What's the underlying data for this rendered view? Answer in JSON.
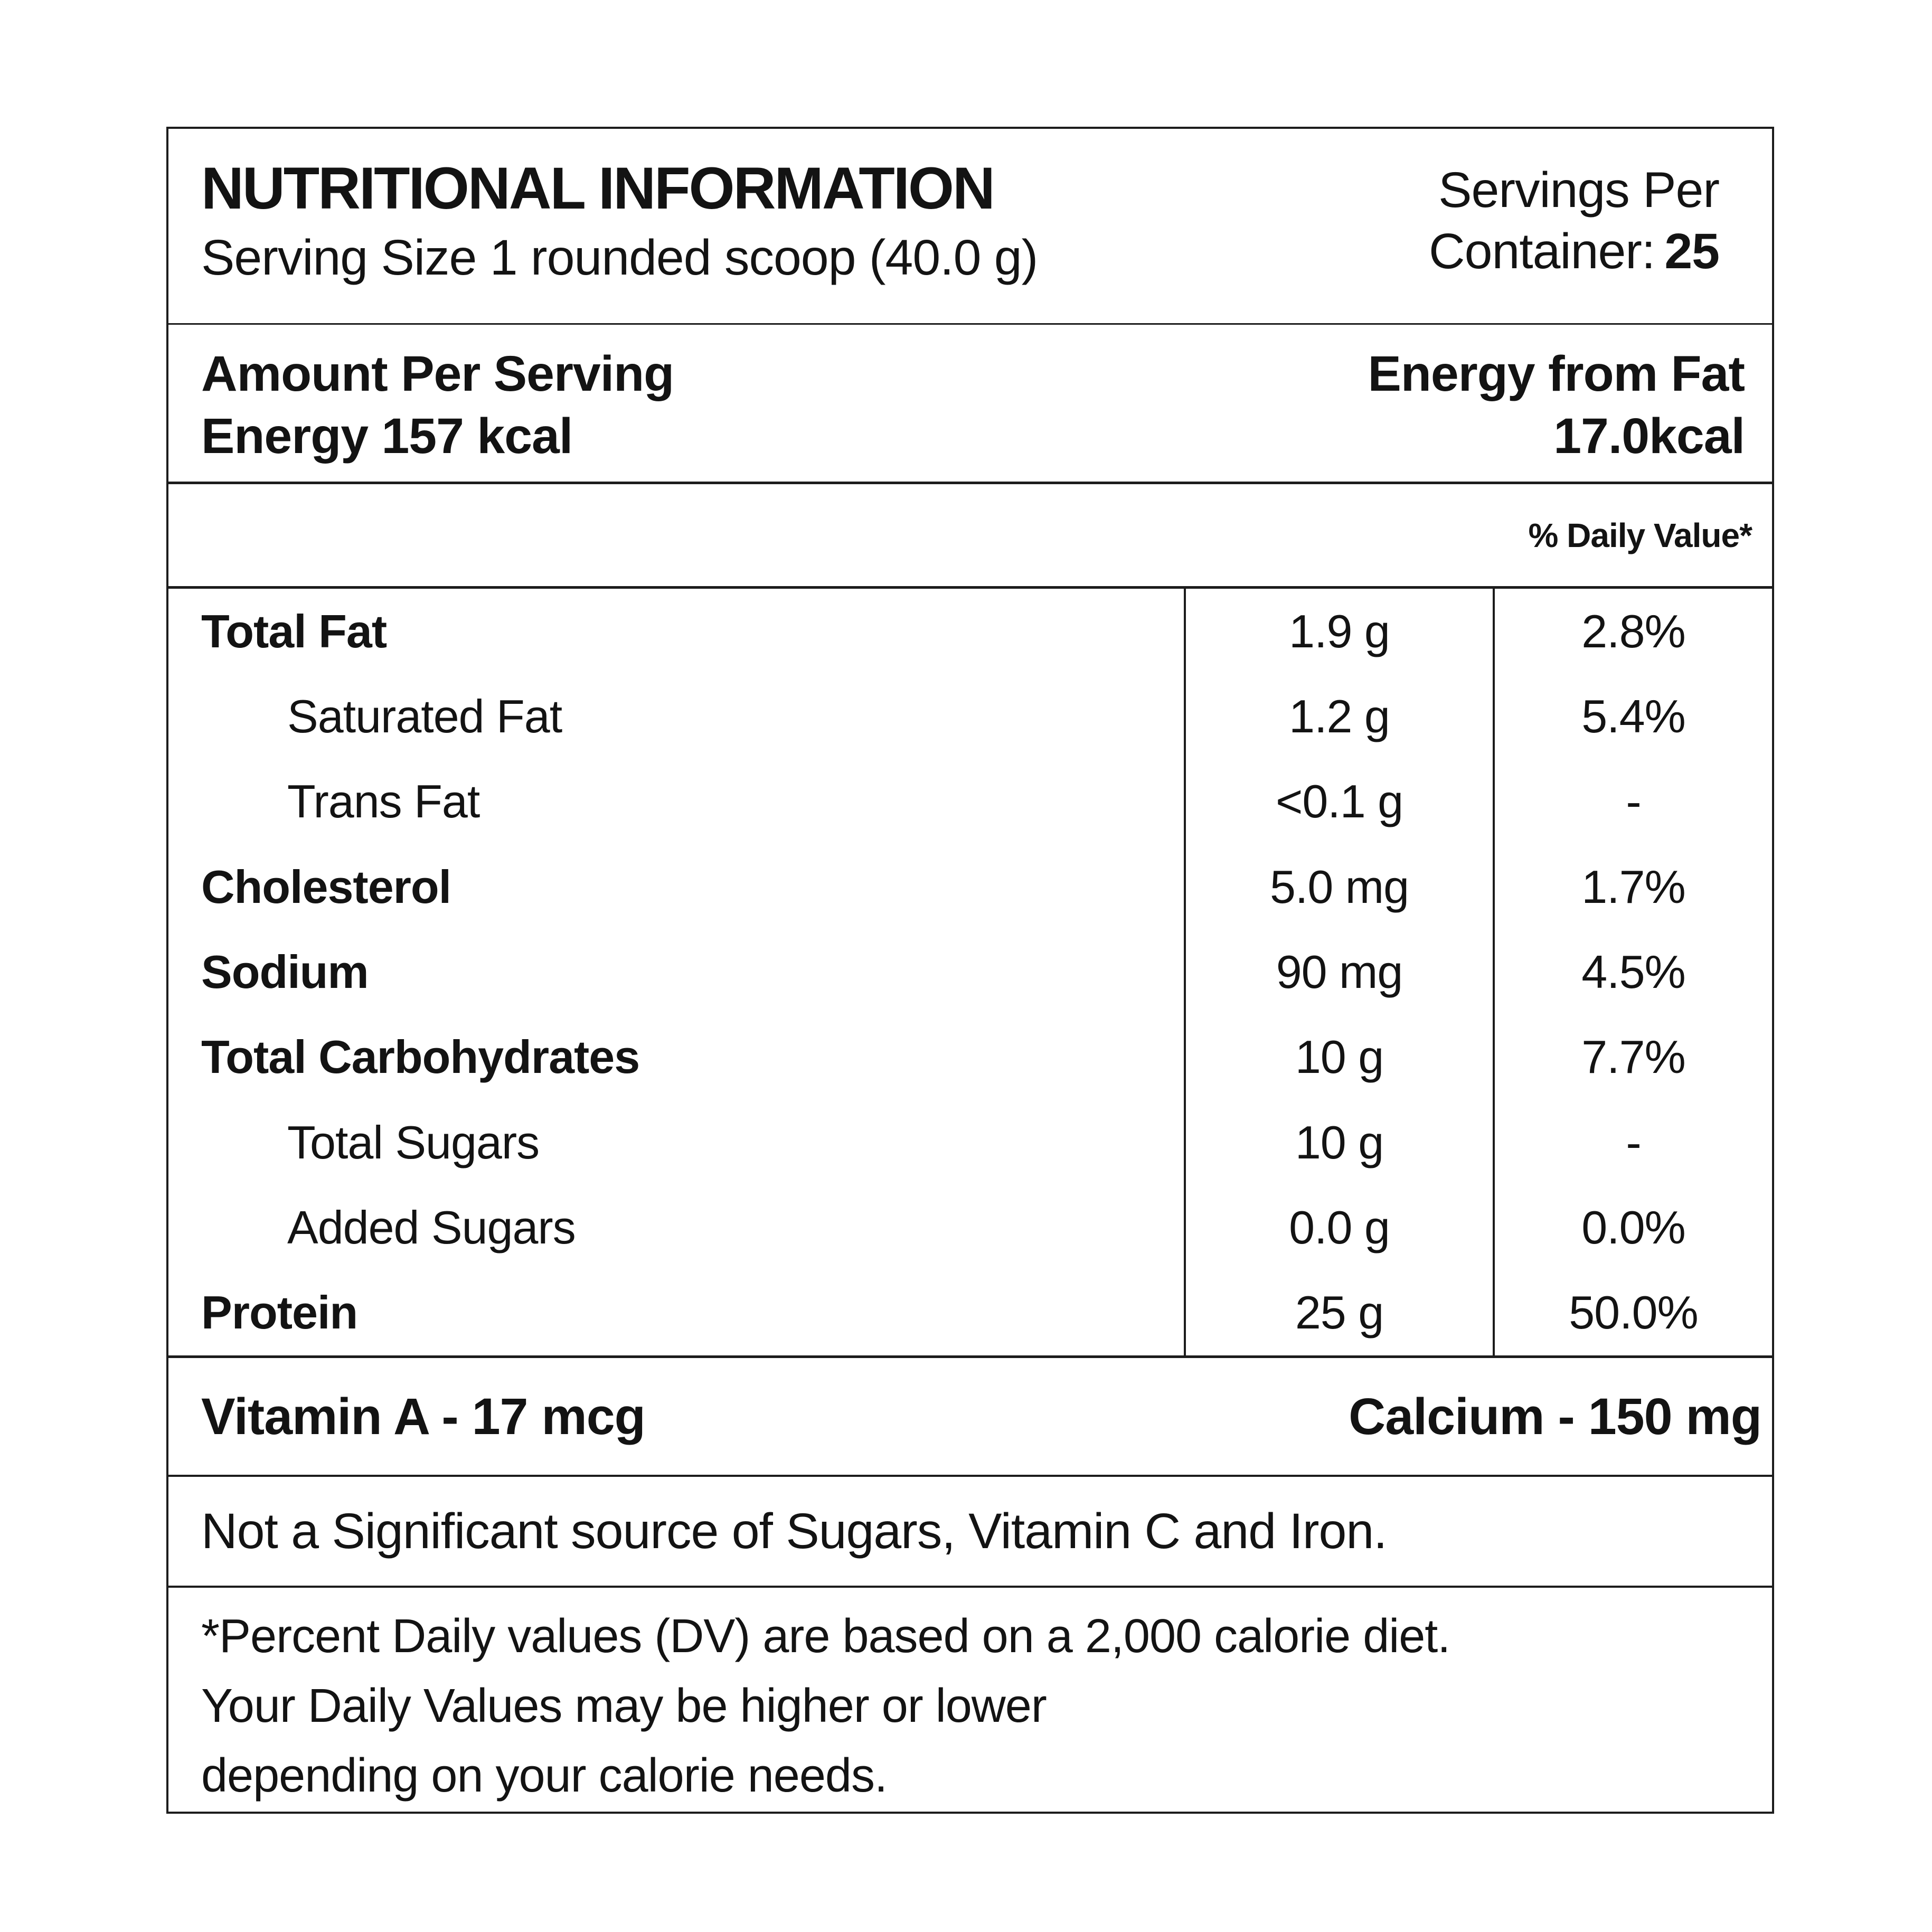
{
  "label": {
    "title": "NUTRITIONAL INFORMATION",
    "serving_size": "Serving Size 1 rounded scoop (40.0 g)",
    "servings_per": {
      "line1": "Servings Per",
      "line2_label": "Container:",
      "line2_value": "25"
    },
    "amount_per_serving": "Amount Per Serving",
    "energy": "Energy 157 kcal",
    "energy_from_fat": {
      "line1": "Energy from Fat",
      "line2": "17.0kcal"
    },
    "daily_value_header": "% Daily Value*",
    "nutrients": [
      {
        "name": "Total Fat",
        "amount": "1.9 g",
        "dv": "2.8%",
        "bold": true,
        "indent": false
      },
      {
        "name": "Saturated Fat",
        "amount": "1.2 g",
        "dv": "5.4%",
        "bold": false,
        "indent": true
      },
      {
        "name": "Trans Fat",
        "amount": "<0.1 g",
        "dv": "-",
        "bold": false,
        "indent": true
      },
      {
        "name": "Cholesterol",
        "amount": "5.0 mg",
        "dv": "1.7%",
        "bold": true,
        "indent": false
      },
      {
        "name": "Sodium",
        "amount": "90 mg",
        "dv": "4.5%",
        "bold": true,
        "indent": false
      },
      {
        "name": "Total Carbohydrates",
        "amount": "10 g",
        "dv": "7.7%",
        "bold": true,
        "indent": false
      },
      {
        "name": "Total Sugars",
        "amount": "10 g",
        "dv": "-",
        "bold": false,
        "indent": true
      },
      {
        "name": "Added Sugars",
        "amount": "0.0 g",
        "dv": "0.0%",
        "bold": false,
        "indent": true
      },
      {
        "name": "Protein",
        "amount": "25 g",
        "dv": "50.0%",
        "bold": true,
        "indent": false
      }
    ],
    "micronutrients": {
      "left": "Vitamin A - 17 mcg",
      "right": "Calcium - 150 mg"
    },
    "note": "Not a Significant source of Sugars, Vitamin C and Iron.",
    "footnote_lines": [
      "*Percent Daily values (DV) are based on a 2,000 calorie diet.",
      "Your Daily Values may be higher or lower",
      "depending on your calorie needs."
    ],
    "colors": {
      "text": "#131313",
      "background": "#ffffff",
      "rule": "#1c1c1c"
    }
  }
}
